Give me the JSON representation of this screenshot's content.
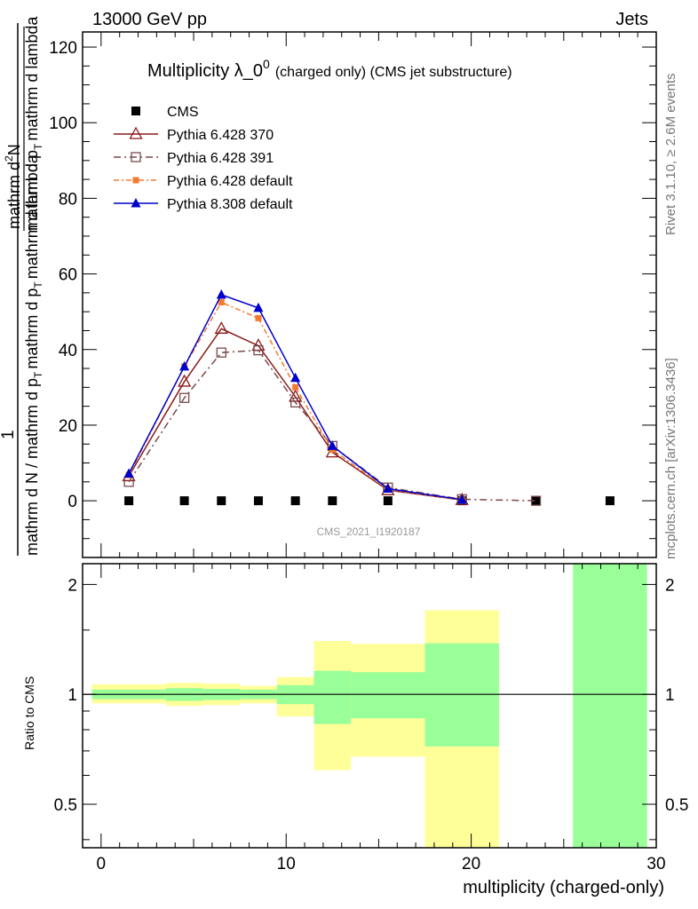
{
  "header": {
    "left": "13000 GeV pp",
    "right": "Jets",
    "side_top": "Rivet 3.1.10, ≥ 2.6M events",
    "side_bottom": "mcplots.cern.ch [arXiv:1306.3436]",
    "watermark": "CMS_2021_I1920187"
  },
  "chart_data": [
    {
      "type": "line",
      "title_main": "Multiplicity λ_0",
      "title_sup": "0",
      "title_tail": "(charged only) (CMS jet substructure)",
      "ylabel": {
        "numerator_one": "1",
        "denominator": "mathrm d N / mathrm d p",
        "denominator_tail": "mathrm d p",
        "denominator_sub": "T",
        "denominator_tail2": "mathrm d lambda",
        "rhs_numerator": "mathrm d",
        "rhs_sup": "2",
        "rhs_N": "N",
        "rhs_den": "mathrm d p",
        "rhs_den_sub": "T",
        "rhs_den_tail": "mathrm d lambda"
      },
      "ylim": [
        -15,
        124
      ],
      "yticks": [
        0,
        20,
        40,
        60,
        80,
        100,
        120
      ],
      "series": [
        {
          "name": "CMS",
          "color": "#000000",
          "marker": "filled-square",
          "x": [
            1.5,
            4.5,
            6.5,
            8.5,
            10.5,
            12.5,
            15.5,
            19.5,
            23.5,
            27.5
          ],
          "y": [
            0,
            0,
            0,
            0,
            0,
            0,
            0,
            0,
            0,
            0
          ]
        },
        {
          "name": "Pythia 6.428 370",
          "color": "#8b1a1a",
          "marker": "open-triangle",
          "dash": "",
          "x": [
            1.5,
            4.5,
            6.5,
            8.5,
            10.5,
            12.5,
            15.5,
            19.5
          ],
          "y": [
            6.5,
            31.5,
            45.5,
            41.0,
            27.5,
            12.8,
            2.8,
            0.2
          ]
        },
        {
          "name": "Pythia 6.428 391",
          "color": "#7a4a4a",
          "marker": "open-square",
          "dash": "8 4 2 4",
          "x": [
            1.5,
            4.5,
            6.5,
            8.5,
            10.5,
            12.5,
            15.5,
            19.5,
            23.5
          ],
          "y": [
            5.0,
            27.2,
            39.2,
            39.8,
            26.0,
            14.5,
            3.5,
            0.4,
            0.0
          ]
        },
        {
          "name": "Pythia 6.428 default",
          "color": "#f47a30",
          "marker": "filled-square-small",
          "dash": "6 3 2 3",
          "x": [
            1.5,
            4.5,
            6.5,
            8.5,
            10.5,
            12.5,
            15.5,
            19.5
          ],
          "y": [
            6.8,
            35.5,
            52.5,
            48.3,
            30.0,
            13.5,
            3.0,
            0.2
          ]
        },
        {
          "name": "Pythia 8.308 default",
          "color": "#0000cc",
          "marker": "filled-triangle",
          "dash": "",
          "x": [
            1.5,
            4.5,
            6.5,
            8.5,
            10.5,
            12.5,
            15.5,
            19.5
          ],
          "y": [
            7.2,
            35.5,
            54.5,
            51.0,
            32.5,
            14.5,
            3.2,
            0.3
          ]
        }
      ]
    },
    {
      "type": "area",
      "ylabel": "Ratio to CMS",
      "xlabel": "multiplicity (charged-only)",
      "ylim": [
        0.38,
        2.28
      ],
      "yticks": [
        0.5,
        1,
        2
      ],
      "ytick_labels": [
        "0.5",
        "1",
        "2"
      ],
      "xlim": [
        -1,
        30
      ],
      "xticks": [
        0,
        10,
        20,
        30
      ],
      "xtick_labels": [
        "0",
        "10",
        "20",
        "30"
      ],
      "bands": [
        {
          "x0": -0.5,
          "x1": 3.5,
          "yellow": [
            0.945,
            1.065
          ],
          "green": [
            0.97,
            1.03
          ]
        },
        {
          "x0": 3.5,
          "x1": 5.5,
          "yellow": [
            0.93,
            1.075
          ],
          "green": [
            0.96,
            1.04
          ]
        },
        {
          "x0": 5.5,
          "x1": 7.5,
          "yellow": [
            0.935,
            1.07
          ],
          "green": [
            0.965,
            1.035
          ]
        },
        {
          "x0": 7.5,
          "x1": 9.5,
          "yellow": [
            0.945,
            1.055
          ],
          "green": [
            0.97,
            1.03
          ]
        },
        {
          "x0": 9.5,
          "x1": 11.5,
          "yellow": [
            0.87,
            1.115
          ],
          "green": [
            0.94,
            1.06
          ]
        },
        {
          "x0": 11.5,
          "x1": 13.5,
          "yellow": [
            0.62,
            1.4
          ],
          "green": [
            0.83,
            1.16
          ]
        },
        {
          "x0": 13.5,
          "x1": 17.5,
          "yellow": [
            0.675,
            1.375
          ],
          "green": [
            0.86,
            1.15
          ]
        },
        {
          "x0": 17.5,
          "x1": 21.5,
          "yellow": [
            0.38,
            1.7
          ],
          "green": [
            0.72,
            1.38
          ]
        },
        {
          "x0": 25.5,
          "x1": 29.5,
          "yellow": [
            0.38,
            2.28
          ],
          "green": [
            0.38,
            2.28
          ]
        }
      ],
      "colors": {
        "yellow": "#ffff99",
        "green": "#99ff99"
      }
    }
  ]
}
